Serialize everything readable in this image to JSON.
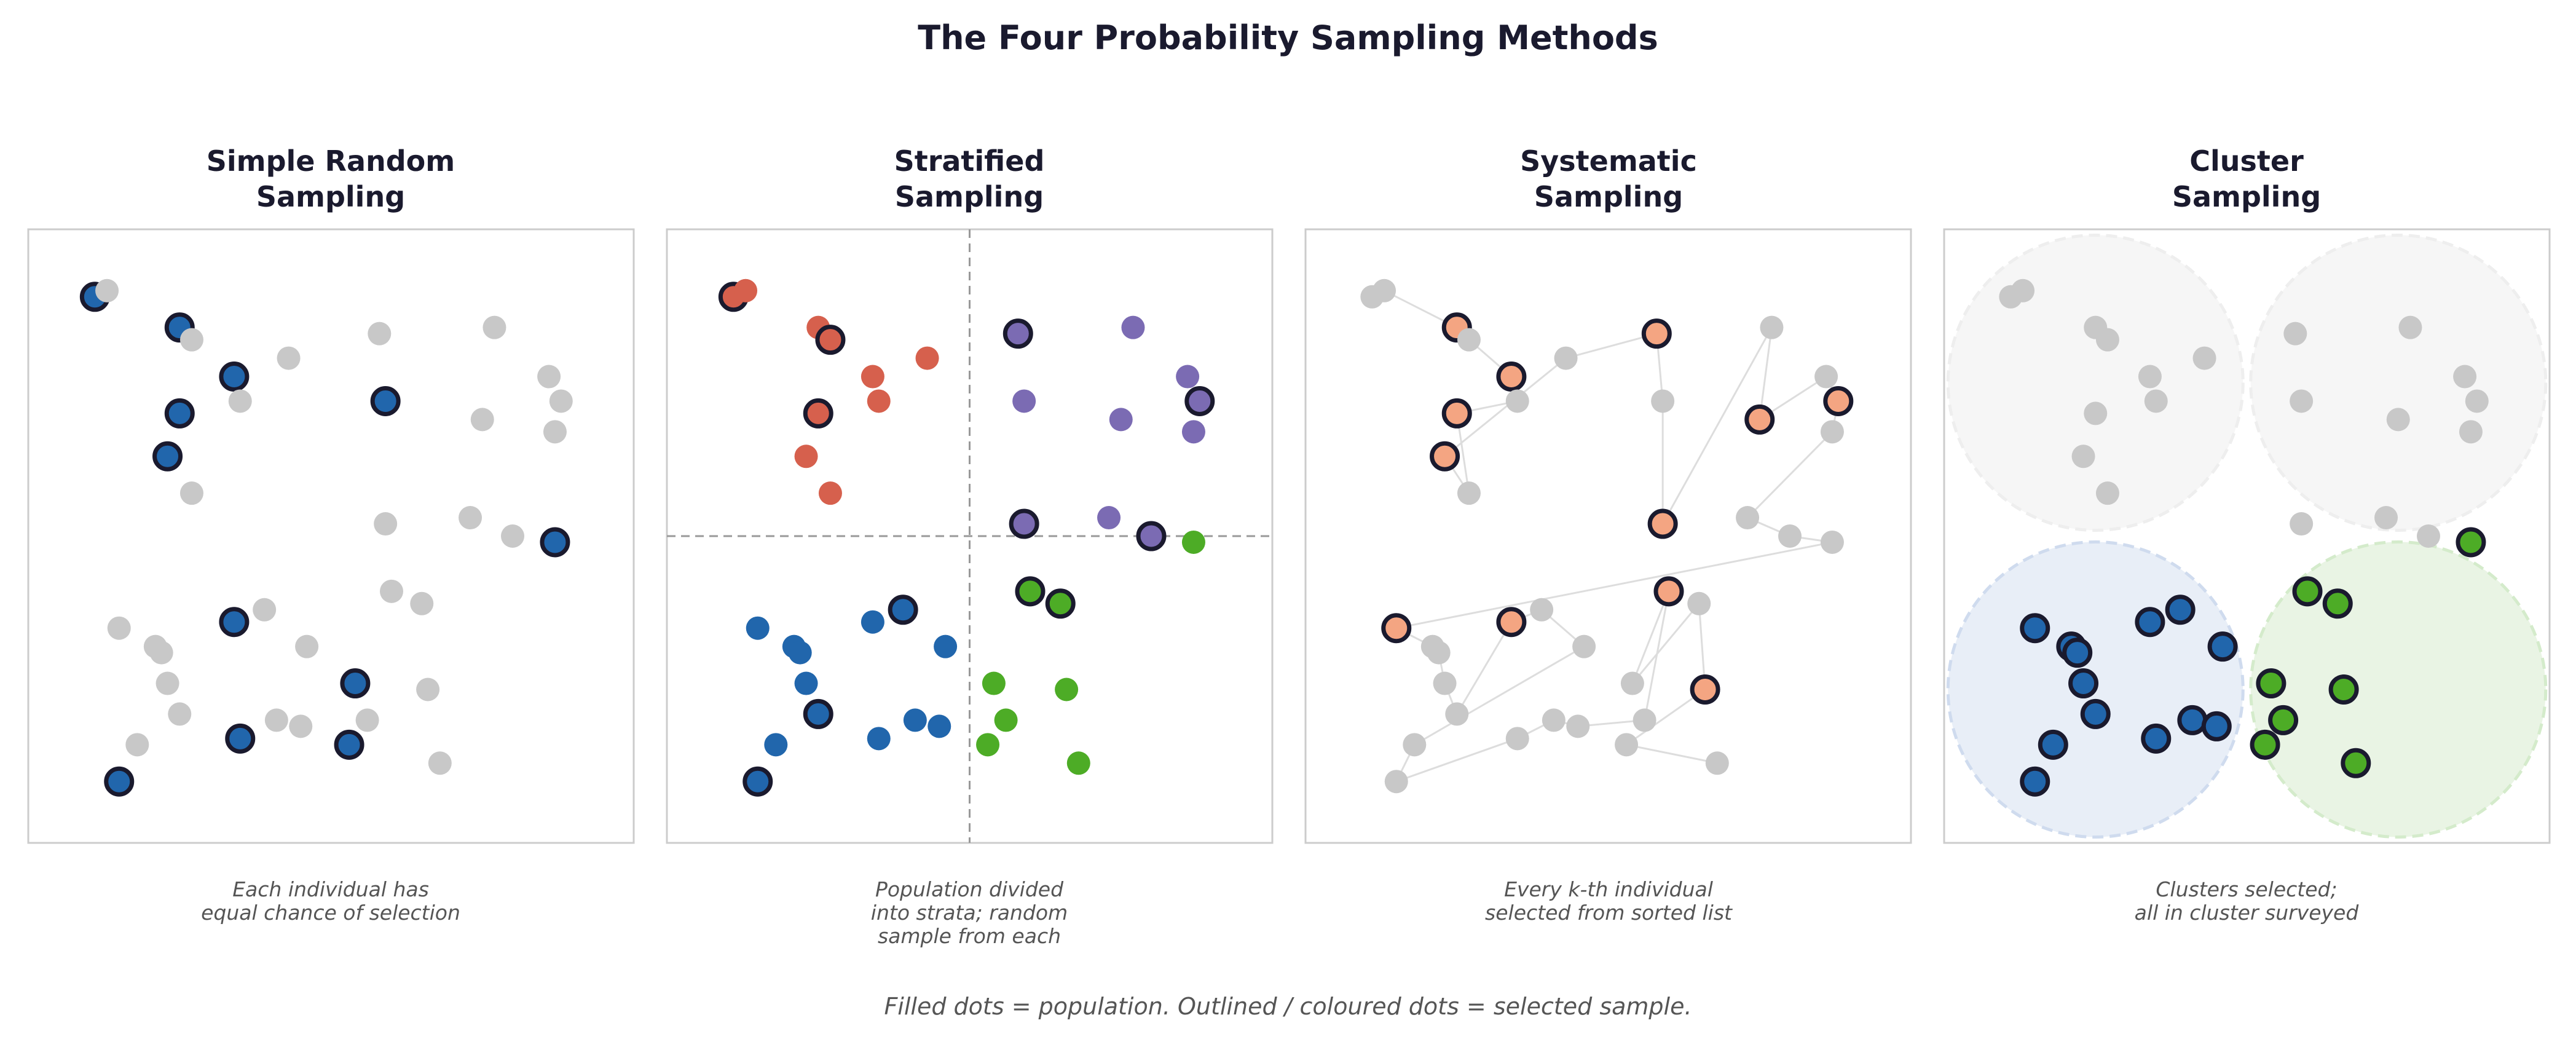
{
  "title": "The Four Probability Sampling Methods",
  "footer": "Filled dots = population.  Outlined / coloured dots = selected sample.",
  "colors": {
    "population": "#c8c8c8",
    "outline": "#1a1a2e",
    "blue": "#2166ac",
    "red": "#d6604d",
    "purple": "#7b6bb3",
    "green": "#4dac26",
    "salmon": "#f4a582",
    "blue_cluster_fill": "#e8eef7",
    "green_cluster_fill": "#e9f4e4",
    "grey_cluster_fill": "#f6f6f6",
    "frame": "#cccccc",
    "divider": "#999999",
    "path": "#dddddd"
  },
  "population": [
    [
      0.11,
      0.89
    ],
    [
      0.13,
      0.9
    ],
    [
      0.25,
      0.84
    ],
    [
      0.27,
      0.82
    ],
    [
      0.34,
      0.76
    ],
    [
      0.35,
      0.72
    ],
    [
      0.25,
      0.7
    ],
    [
      0.27,
      0.57
    ],
    [
      0.23,
      0.63
    ],
    [
      0.43,
      0.79
    ],
    [
      0.58,
      0.83
    ],
    [
      0.59,
      0.72
    ],
    [
      0.59,
      0.52
    ],
    [
      0.77,
      0.84
    ],
    [
      0.75,
      0.69
    ],
    [
      0.86,
      0.76
    ],
    [
      0.88,
      0.72
    ],
    [
      0.87,
      0.67
    ],
    [
      0.73,
      0.53
    ],
    [
      0.8,
      0.5
    ],
    [
      0.87,
      0.49
    ],
    [
      0.15,
      0.35
    ],
    [
      0.21,
      0.32
    ],
    [
      0.22,
      0.31
    ],
    [
      0.23,
      0.26
    ],
    [
      0.25,
      0.21
    ],
    [
      0.34,
      0.36
    ],
    [
      0.39,
      0.38
    ],
    [
      0.46,
      0.32
    ],
    [
      0.18,
      0.16
    ],
    [
      0.15,
      0.1
    ],
    [
      0.35,
      0.17
    ],
    [
      0.41,
      0.2
    ],
    [
      0.45,
      0.19
    ],
    [
      0.56,
      0.2
    ],
    [
      0.6,
      0.41
    ],
    [
      0.54,
      0.26
    ],
    [
      0.65,
      0.39
    ],
    [
      0.66,
      0.25
    ],
    [
      0.53,
      0.16
    ],
    [
      0.68,
      0.13
    ]
  ],
  "panels": [
    {
      "title_lines": [
        "Simple Random",
        "Sampling"
      ],
      "caption_lines": [
        "Each individual has",
        "equal chance of selection"
      ],
      "method": "simple",
      "selected": [
        0,
        2,
        4,
        6,
        8,
        11,
        20,
        26,
        30,
        31,
        36,
        39
      ]
    },
    {
      "title_lines": [
        "Stratified",
        "Sampling"
      ],
      "caption_lines": [
        "Population divided",
        "into strata; random",
        "sample from each"
      ],
      "method": "stratified",
      "strata_split": [
        0.5,
        0.5
      ],
      "selected": [
        0,
        3,
        6,
        10,
        12,
        16,
        19,
        25,
        27,
        30,
        35,
        37
      ]
    },
    {
      "title_lines": [
        "Systematic",
        "Sampling"
      ],
      "caption_lines": [
        "Every k-th individual",
        "selected from sorted list"
      ],
      "method": "systematic",
      "selected": [
        2,
        4,
        6,
        8,
        10,
        12,
        14,
        16,
        21,
        26,
        35,
        38
      ]
    },
    {
      "title_lines": [
        "Cluster",
        "Sampling"
      ],
      "caption_lines": [
        "Clusters selected;",
        "all in cluster surveyed"
      ],
      "method": "cluster",
      "selected_clusters": [
        "bottom-left",
        "bottom-right"
      ]
    }
  ]
}
